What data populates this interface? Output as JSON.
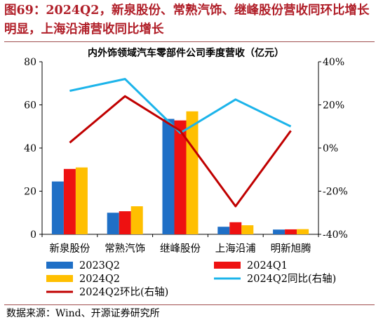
{
  "figure": {
    "title": "图69：2024Q2，新泉股份、常熟汽饰、继峰股份营收同环比增长明显，上海沿浦营收同比增长",
    "source": "数据来源：Wind、开源证券研究所"
  },
  "chart_data": {
    "type": "bar",
    "title": "内外饰领域汽车零部件公司季度营收（亿元）",
    "categories": [
      "新泉股份",
      "常熟汽饰",
      "继峰股份",
      "上海沿浦",
      "明新旭腾"
    ],
    "ylim": [
      0,
      80
    ],
    "yticks": [
      "0",
      "20",
      "40",
      "60",
      "80"
    ],
    "y2lim": [
      -40,
      40
    ],
    "y2ticks": [
      "-40%",
      "-20%",
      "0%",
      "20%",
      "40%"
    ],
    "grid": false,
    "legend_position": "bottom",
    "bar_series": [
      {
        "name": "2023Q2",
        "color": "#1f6fc6",
        "values": [
          24.5,
          10.0,
          53.5,
          3.5,
          2.2
        ]
      },
      {
        "name": "2024Q1",
        "color": "#ee1111",
        "values": [
          30.3,
          10.7,
          52.8,
          5.6,
          2.3
        ]
      },
      {
        "name": "2024Q2",
        "color": "#ffbf00",
        "values": [
          31.0,
          13.0,
          57.0,
          4.2,
          2.4
        ]
      }
    ],
    "line_series": [
      {
        "name": "2024Q2同比(右轴)",
        "color": "#1cb4ea",
        "axis": "right",
        "values": [
          26.5,
          32,
          7,
          22.5,
          10
        ]
      },
      {
        "name": "2024Q2环比(右轴)",
        "color": "#c00000",
        "axis": "right",
        "values": [
          2.5,
          24,
          8,
          -27,
          8
        ]
      }
    ]
  }
}
